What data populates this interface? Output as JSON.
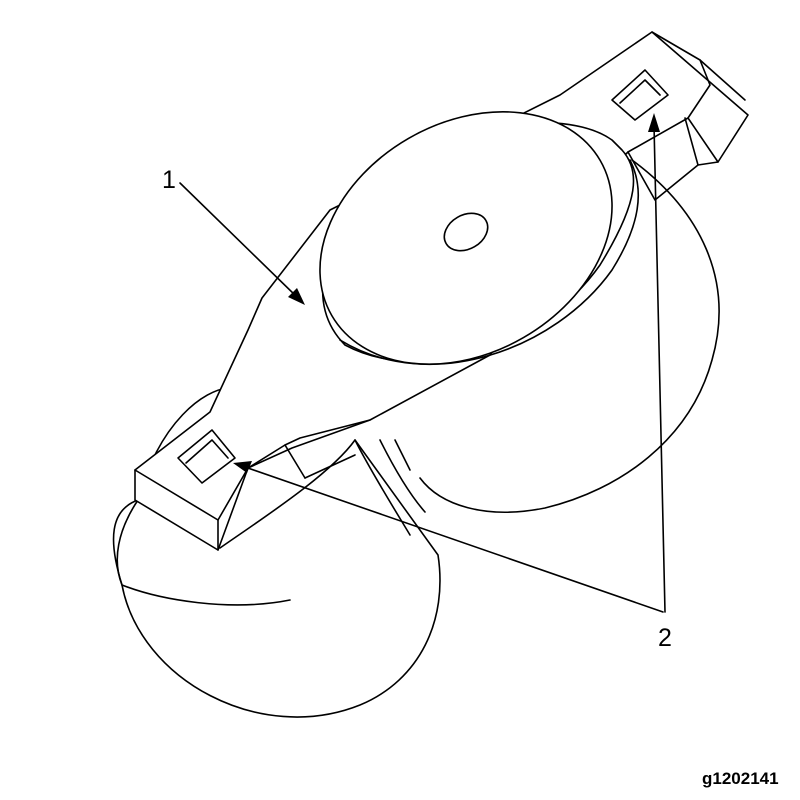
{
  "callouts": [
    {
      "id": "1",
      "label": "1"
    },
    {
      "id": "2",
      "label": "2"
    }
  ],
  "figure_id": "g1202141",
  "line_color": "#000000",
  "background_color": "#ffffff"
}
